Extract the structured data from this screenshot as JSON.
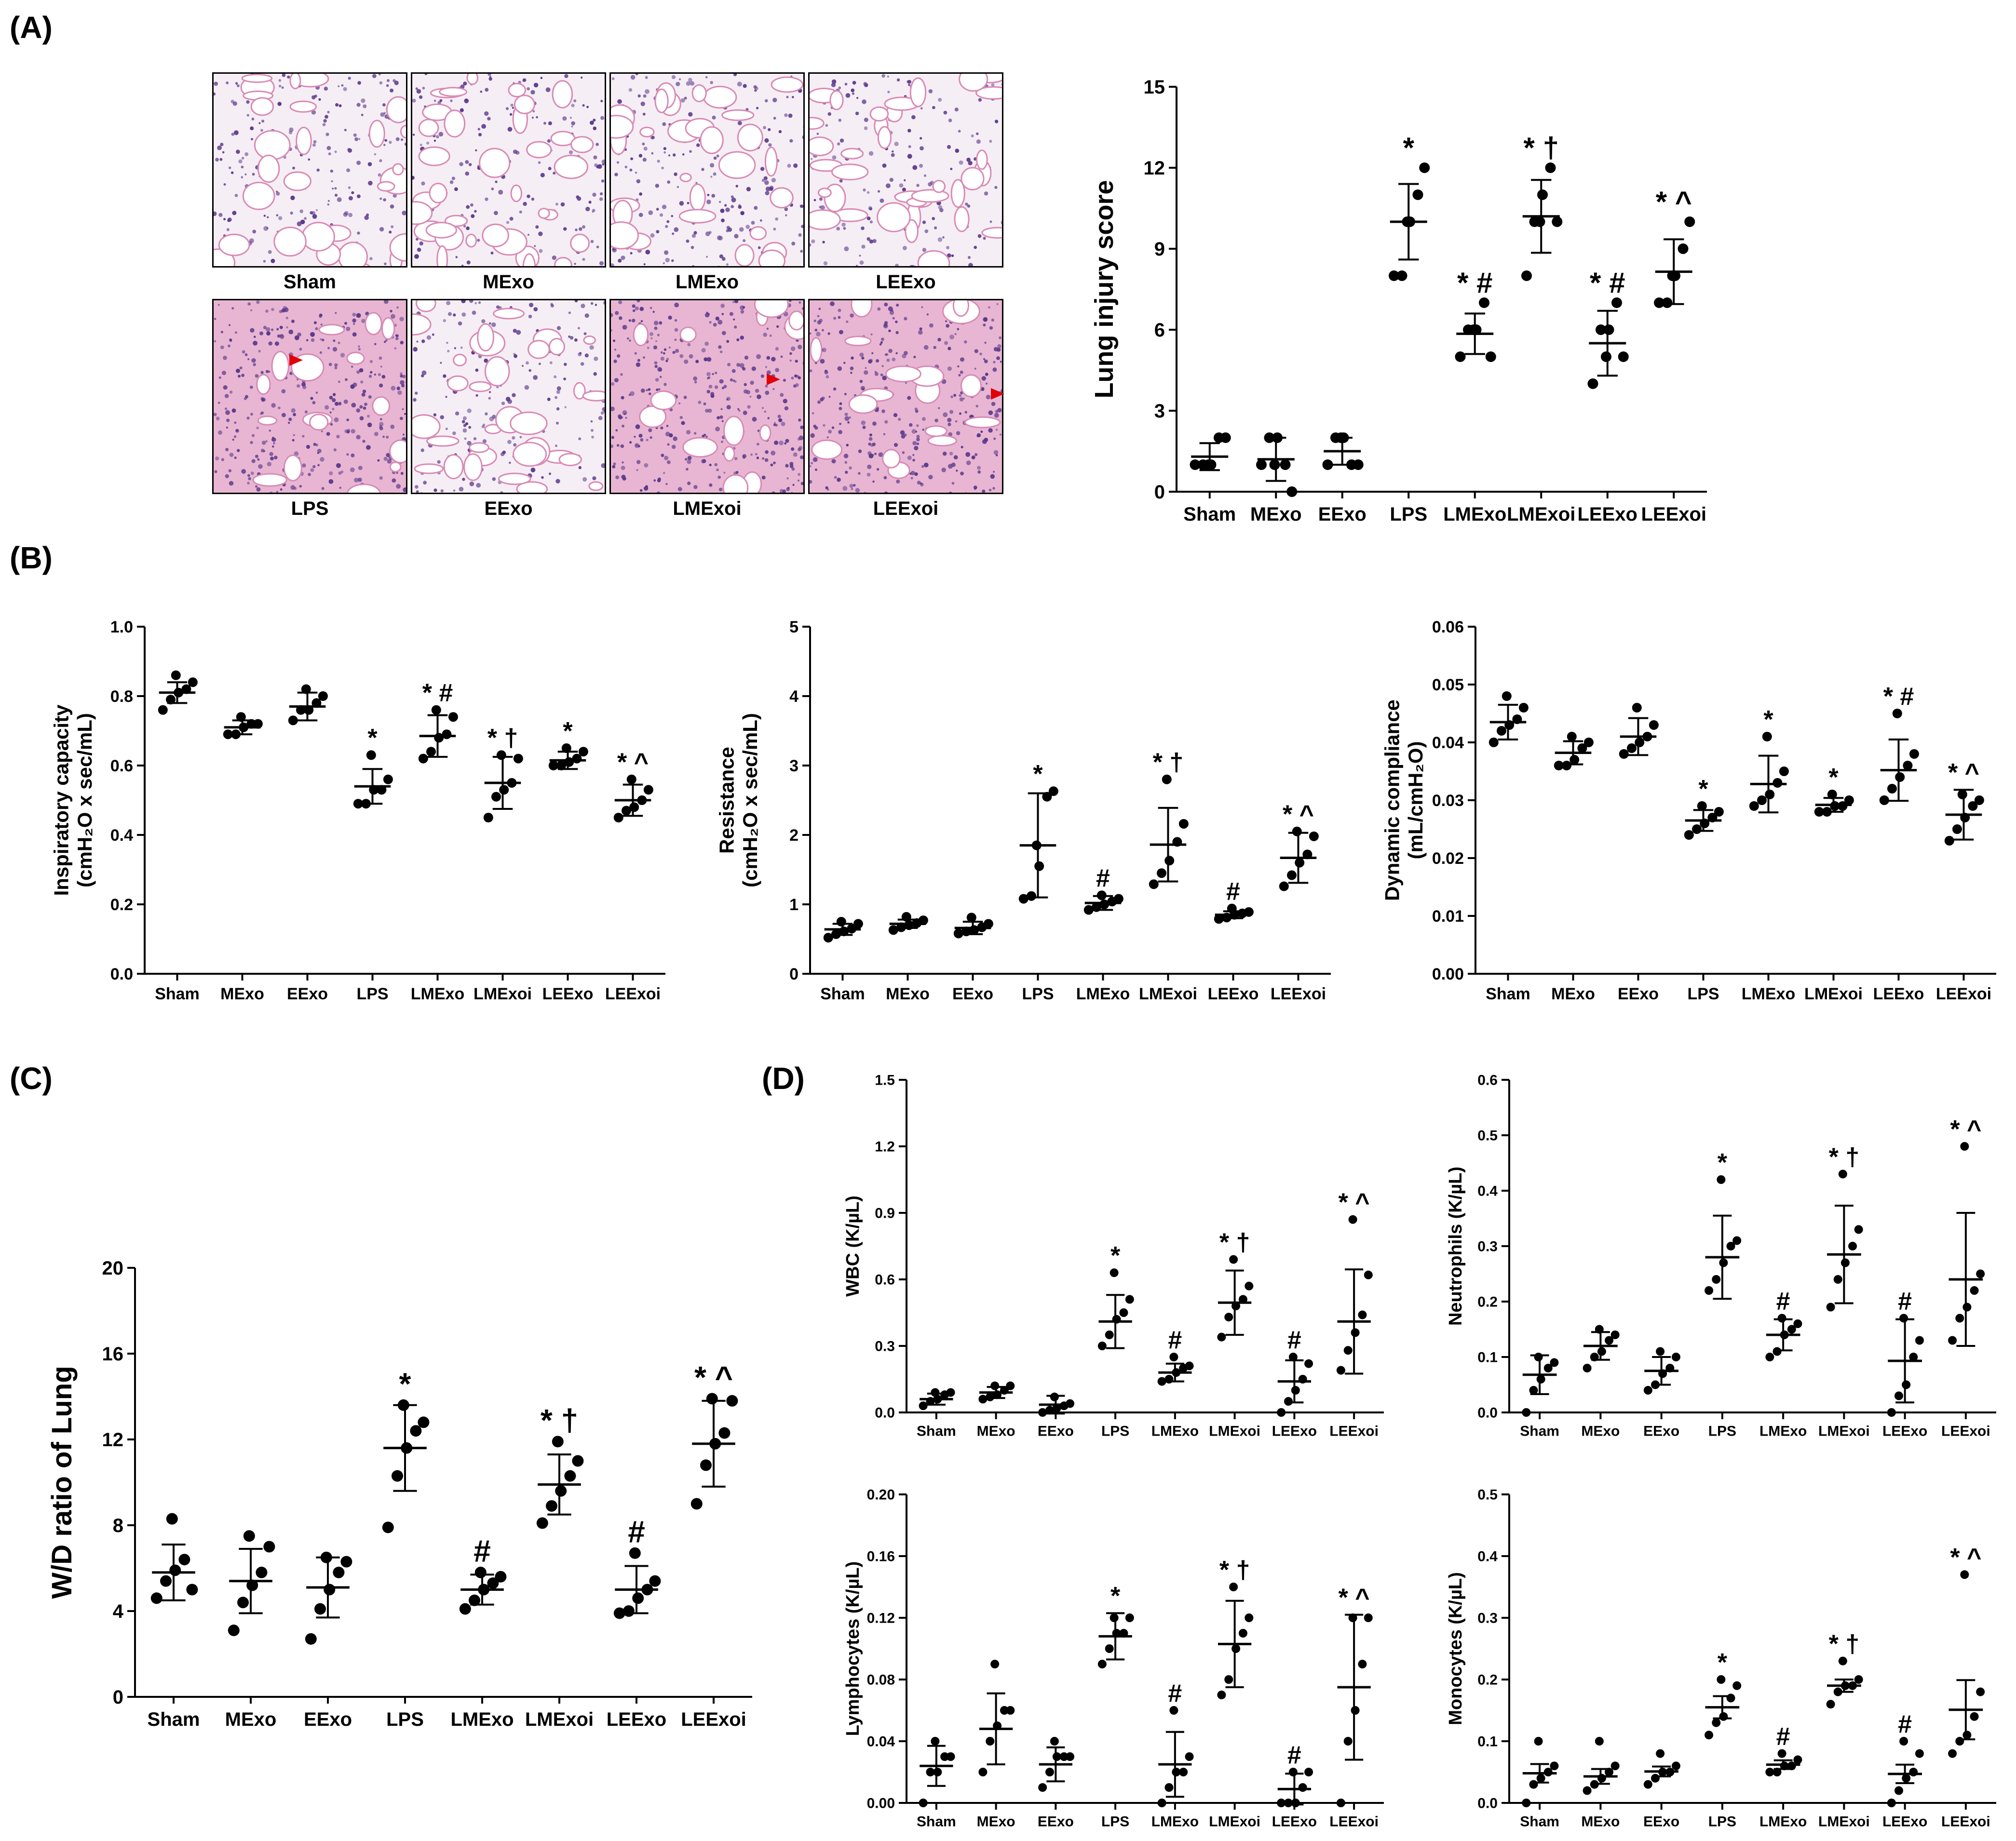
{
  "panel_labels": {
    "a": "(A)",
    "b": "(B)",
    "c": "(C)",
    "d": "(D)"
  },
  "histology": {
    "row1": [
      "Sham",
      "MExo",
      "LMExo",
      "LEExo"
    ],
    "row2": [
      "LPS",
      "EExo",
      "LMExoi",
      "LEExoi"
    ]
  },
  "colors": {
    "lung_tissue": "#ffffff",
    "stain_pink": "#d98ab4",
    "stain_purple": "#5b3a8c",
    "arrow": "#e0000a"
  },
  "chart_data": [
    {
      "id": "lung_injury",
      "type": "scatter",
      "ylabel": "Lung injury score",
      "ylim": [
        0,
        15
      ],
      "yticks": [
        "0",
        "3",
        "6",
        "9",
        "12",
        "15"
      ],
      "categories": [
        "Sham",
        "MExo",
        "EExo",
        "LPS",
        "LMExo",
        "LMExoi",
        "LEExo",
        "LEExoi"
      ],
      "points": [
        [
          1,
          1,
          1,
          2,
          2,
          1
        ],
        [
          1,
          2,
          2,
          1,
          0,
          1
        ],
        [
          1,
          2,
          2,
          1,
          1,
          2
        ],
        [
          8,
          8,
          10,
          11,
          12,
          10
        ],
        [
          5,
          6,
          6,
          7,
          5,
          6
        ],
        [
          8,
          10,
          11,
          12,
          10,
          10
        ],
        [
          4,
          6,
          6,
          7,
          5,
          5
        ],
        [
          7,
          7,
          8,
          9,
          10,
          8
        ]
      ],
      "mean": [
        1.3,
        1.2,
        1.5,
        10.0,
        5.85,
        10.2,
        5.5,
        8.15
      ],
      "sd": [
        0.5,
        0.8,
        0.5,
        1.4,
        0.75,
        1.35,
        1.2,
        1.2
      ],
      "annotations": [
        "",
        "",
        "",
        "*",
        "* #",
        "* †",
        "* #",
        "* ^"
      ]
    },
    {
      "id": "inspiratory_capacity",
      "type": "scatter",
      "ylabel": "Inspiratory capacity",
      "ylabel2": "(cmH₂O x sec/mL)",
      "ylim": [
        0,
        1.0
      ],
      "yticks": [
        "0.0",
        "0.2",
        "0.4",
        "0.6",
        "0.8",
        "1.0"
      ],
      "categories": [
        "Sham",
        "MExo",
        "EExo",
        "LPS",
        "LMExo",
        "LMExoi",
        "LEExo",
        "LEExoi"
      ],
      "points": [
        [
          0.76,
          0.79,
          0.81,
          0.82,
          0.84,
          0.86
        ],
        [
          0.69,
          0.69,
          0.71,
          0.72,
          0.72,
          0.74
        ],
        [
          0.73,
          0.76,
          0.76,
          0.78,
          0.8,
          0.82
        ],
        [
          0.49,
          0.49,
          0.53,
          0.53,
          0.56,
          0.63
        ],
        [
          0.62,
          0.64,
          0.68,
          0.69,
          0.74,
          0.76
        ],
        [
          0.45,
          0.51,
          0.53,
          0.55,
          0.62,
          0.63
        ],
        [
          0.6,
          0.6,
          0.61,
          0.62,
          0.64,
          0.65
        ],
        [
          0.45,
          0.47,
          0.48,
          0.5,
          0.53,
          0.56
        ]
      ],
      "mean": [
        0.81,
        0.71,
        0.77,
        0.54,
        0.685,
        0.55,
        0.615,
        0.5
      ],
      "sd": [
        0.03,
        0.02,
        0.04,
        0.05,
        0.06,
        0.075,
        0.025,
        0.045
      ],
      "annotations": [
        "",
        "",
        "",
        "*",
        "* #",
        "* †",
        "*",
        "* ^"
      ]
    },
    {
      "id": "resistance",
      "type": "scatter",
      "ylabel": "Resistance",
      "ylabel2": "(cmH₂O x sec/mL)",
      "ylim": [
        0,
        5
      ],
      "yticks": [
        "0",
        "1",
        "2",
        "3",
        "4",
        "5"
      ],
      "categories": [
        "Sham",
        "MExo",
        "EExo",
        "LPS",
        "LMExo",
        "LMExoi",
        "LEExo",
        "LEExoi"
      ],
      "points": [
        [
          0.52,
          0.57,
          0.61,
          0.65,
          0.72,
          0.75
        ],
        [
          0.63,
          0.67,
          0.7,
          0.73,
          0.77,
          0.82
        ],
        [
          0.58,
          0.61,
          0.63,
          0.67,
          0.72,
          0.81
        ],
        [
          1.08,
          1.12,
          1.55,
          2.55,
          2.63,
          1.85
        ],
        [
          0.92,
          0.96,
          1.0,
          1.04,
          1.08,
          1.13
        ],
        [
          1.29,
          1.45,
          1.63,
          1.9,
          2.16,
          2.8
        ],
        [
          0.79,
          0.81,
          0.85,
          0.87,
          0.89,
          0.94
        ],
        [
          1.26,
          1.42,
          1.6,
          1.72,
          1.98,
          2.05
        ]
      ],
      "mean": [
        0.64,
        0.72,
        0.66,
        1.85,
        1.02,
        1.86,
        0.85,
        1.67
      ],
      "sd": [
        0.08,
        0.06,
        0.09,
        0.75,
        0.1,
        0.53,
        0.05,
        0.36
      ],
      "annotations": [
        "",
        "",
        "",
        "*",
        "#",
        "* †",
        "#",
        "* ^"
      ]
    },
    {
      "id": "dynamic_compliance",
      "type": "scatter",
      "ylabel": "Dynamic compliance",
      "ylabel2": "(mL/cmH₂O)",
      "ylim": [
        0,
        0.06
      ],
      "yticks": [
        "0.00",
        "0.01",
        "0.02",
        "0.03",
        "0.04",
        "0.05",
        "0.06"
      ],
      "categories": [
        "Sham",
        "MExo",
        "EExo",
        "LPS",
        "LMExo",
        "LMExoi",
        "LEExo",
        "LEExoi"
      ],
      "points": [
        [
          0.04,
          0.042,
          0.043,
          0.044,
          0.046,
          0.048
        ],
        [
          0.036,
          0.036,
          0.037,
          0.039,
          0.04,
          0.041
        ],
        [
          0.038,
          0.039,
          0.04,
          0.041,
          0.043,
          0.046
        ],
        [
          0.024,
          0.025,
          0.026,
          0.027,
          0.028,
          0.029
        ],
        [
          0.029,
          0.03,
          0.031,
          0.033,
          0.035,
          0.041
        ],
        [
          0.028,
          0.028,
          0.029,
          0.029,
          0.03,
          0.031
        ],
        [
          0.03,
          0.032,
          0.034,
          0.036,
          0.038,
          0.045
        ],
        [
          0.023,
          0.025,
          0.027,
          0.029,
          0.03,
          0.031
        ]
      ],
      "mean": [
        0.0435,
        0.0382,
        0.041,
        0.0265,
        0.0328,
        0.0292,
        0.0352,
        0.0275
      ],
      "sd": [
        0.003,
        0.002,
        0.0032,
        0.0018,
        0.0049,
        0.0012,
        0.0053,
        0.0043
      ],
      "annotations": [
        "",
        "",
        "",
        "*",
        "*",
        "*",
        "* #",
        "* ^"
      ]
    },
    {
      "id": "wd_ratio",
      "type": "scatter",
      "ylabel": "W/D ratio of Lung",
      "ylim": [
        0,
        20
      ],
      "yticks": [
        "0",
        "4",
        "8",
        "12",
        "16",
        "20"
      ],
      "categories": [
        "Sham",
        "MExo",
        "EExo",
        "LPS",
        "LMExo",
        "LMExoi",
        "LEExo",
        "LEExoi"
      ],
      "points": [
        [
          4.6,
          5.4,
          5.9,
          6.4,
          5.0,
          8.3
        ],
        [
          3.1,
          4.4,
          5.2,
          5.8,
          7.0,
          7.5
        ],
        [
          2.7,
          4.1,
          5.0,
          5.8,
          6.3,
          6.5
        ],
        [
          7.9,
          10.3,
          11.6,
          12.4,
          12.8,
          13.6
        ],
        [
          4.1,
          4.5,
          5.0,
          5.3,
          5.6,
          5.8
        ],
        [
          8.1,
          8.9,
          9.6,
          10.3,
          11.0,
          11.9
        ],
        [
          3.9,
          4.0,
          4.6,
          5.0,
          5.4,
          6.7
        ],
        [
          9.0,
          10.8,
          11.8,
          12.3,
          13.8,
          13.9
        ]
      ],
      "mean": [
        5.8,
        5.4,
        5.1,
        11.6,
        5.0,
        9.9,
        5.0,
        11.8
      ],
      "sd": [
        1.3,
        1.5,
        1.4,
        2.0,
        0.7,
        1.4,
        1.1,
        2.0
      ],
      "annotations": [
        "",
        "",
        "",
        "*",
        "#",
        "* †",
        "#",
        "* ^"
      ]
    },
    {
      "id": "wbc",
      "type": "scatter",
      "ylabel": "WBC (K/µL)",
      "ylim": [
        0,
        1.5
      ],
      "yticks": [
        "0.0",
        "0.3",
        "0.6",
        "0.9",
        "1.2",
        "1.5"
      ],
      "categories": [
        "Sham",
        "MExo",
        "EExo",
        "LPS",
        "LMExo",
        "LMExoi",
        "LEExo",
        "LEExoi"
      ],
      "points": [
        [
          0.03,
          0.05,
          0.06,
          0.08,
          0.09,
          0.09
        ],
        [
          0.06,
          0.07,
          0.08,
          0.1,
          0.12,
          0.12
        ],
        [
          0.0,
          0.01,
          0.02,
          0.03,
          0.04,
          0.07
        ],
        [
          0.3,
          0.35,
          0.42,
          0.45,
          0.51,
          0.63
        ],
        [
          0.14,
          0.15,
          0.18,
          0.2,
          0.21,
          0.25
        ],
        [
          0.34,
          0.43,
          0.48,
          0.51,
          0.57,
          0.69
        ],
        [
          0.0,
          0.05,
          0.1,
          0.15,
          0.22,
          0.25
        ],
        [
          0.19,
          0.28,
          0.36,
          0.44,
          0.62,
          0.87
        ]
      ],
      "mean": [
        0.06,
        0.09,
        0.035,
        0.41,
        0.18,
        0.495,
        0.14,
        0.41
      ],
      "sd": [
        0.025,
        0.025,
        0.04,
        0.12,
        0.04,
        0.145,
        0.095,
        0.235
      ],
      "annotations": [
        "",
        "",
        "",
        "*",
        "#",
        "* †",
        "#",
        "* ^"
      ]
    },
    {
      "id": "neutrophils",
      "type": "scatter",
      "ylabel": "Neutrophils (K/µL)",
      "ylim": [
        0,
        0.6
      ],
      "yticks": [
        "0.0",
        "0.1",
        "0.2",
        "0.3",
        "0.4",
        "0.5",
        "0.6"
      ],
      "categories": [
        "Sham",
        "MExo",
        "EExo",
        "LPS",
        "LMExo",
        "LMExoi",
        "LEExo",
        "LEExoi"
      ],
      "points": [
        [
          0.0,
          0.04,
          0.06,
          0.08,
          0.09,
          0.1
        ],
        [
          0.08,
          0.1,
          0.11,
          0.13,
          0.14,
          0.15
        ],
        [
          0.04,
          0.05,
          0.07,
          0.08,
          0.1,
          0.11
        ],
        [
          0.22,
          0.24,
          0.27,
          0.3,
          0.31,
          0.42
        ],
        [
          0.1,
          0.11,
          0.14,
          0.15,
          0.16,
          0.17
        ],
        [
          0.19,
          0.24,
          0.27,
          0.3,
          0.33,
          0.43
        ],
        [
          0.0,
          0.03,
          0.05,
          0.1,
          0.13,
          0.17
        ],
        [
          0.13,
          0.17,
          0.19,
          0.22,
          0.25,
          0.48
        ]
      ],
      "mean": [
        0.068,
        0.12,
        0.075,
        0.28,
        0.14,
        0.285,
        0.093,
        0.24
      ],
      "sd": [
        0.035,
        0.025,
        0.025,
        0.075,
        0.028,
        0.088,
        0.075,
        0.12
      ],
      "annotations": [
        "",
        "",
        "",
        "*",
        "#",
        "* †",
        "#",
        "* ^"
      ]
    },
    {
      "id": "lymphocytes",
      "type": "scatter",
      "ylabel": "Lymphocytes (K/µL)",
      "ylim": [
        0,
        0.2
      ],
      "yticks": [
        "0.00",
        "0.04",
        "0.08",
        "0.12",
        "0.16",
        "0.20"
      ],
      "categories": [
        "Sham",
        "MExo",
        "EExo",
        "LPS",
        "LMExo",
        "LMExoi",
        "LEExo",
        "LEExoi"
      ],
      "points": [
        [
          0.0,
          0.02,
          0.02,
          0.03,
          0.03,
          0.04
        ],
        [
          0.02,
          0.04,
          0.05,
          0.06,
          0.06,
          0.09
        ],
        [
          0.01,
          0.02,
          0.03,
          0.03,
          0.03,
          0.04
        ],
        [
          0.09,
          0.1,
          0.11,
          0.11,
          0.12,
          0.12
        ],
        [
          0.0,
          0.01,
          0.02,
          0.02,
          0.03,
          0.06
        ],
        [
          0.07,
          0.08,
          0.1,
          0.11,
          0.12,
          0.14
        ],
        [
          0.0,
          0.0,
          0.0,
          0.01,
          0.02,
          0.02
        ],
        [
          0.0,
          0.04,
          0.06,
          0.09,
          0.12,
          0.12
        ]
      ],
      "mean": [
        0.024,
        0.048,
        0.025,
        0.108,
        0.025,
        0.103,
        0.009,
        0.075
      ],
      "sd": [
        0.013,
        0.023,
        0.011,
        0.015,
        0.021,
        0.028,
        0.01,
        0.047
      ],
      "annotations": [
        "",
        "",
        "",
        "*",
        "#",
        "* †",
        "#",
        "* ^"
      ]
    },
    {
      "id": "monocytes",
      "type": "scatter",
      "ylabel": "Monocytes (K/µL)",
      "ylim": [
        0,
        0.5
      ],
      "yticks": [
        "0.0",
        "0.1",
        "0.2",
        "0.3",
        "0.4",
        "0.5"
      ],
      "categories": [
        "Sham",
        "MExo",
        "EExo",
        "LPS",
        "LMExo",
        "LMExoi",
        "LEExo",
        "LEExoi"
      ],
      "points": [
        [
          0.0,
          0.03,
          0.04,
          0.05,
          0.06,
          0.1
        ],
        [
          0.02,
          0.03,
          0.04,
          0.05,
          0.06,
          0.1
        ],
        [
          0.03,
          0.04,
          0.05,
          0.05,
          0.06,
          0.08
        ],
        [
          0.11,
          0.13,
          0.14,
          0.17,
          0.19,
          0.2
        ],
        [
          0.05,
          0.05,
          0.06,
          0.06,
          0.07,
          0.08
        ],
        [
          0.16,
          0.18,
          0.19,
          0.19,
          0.2,
          0.23
        ],
        [
          0.0,
          0.02,
          0.04,
          0.05,
          0.08,
          0.1
        ],
        [
          0.08,
          0.1,
          0.11,
          0.14,
          0.18,
          0.37
        ]
      ],
      "mean": [
        0.048,
        0.043,
        0.051,
        0.155,
        0.062,
        0.19,
        0.047,
        0.151
      ],
      "sd": [
        0.015,
        0.012,
        0.008,
        0.018,
        0.007,
        0.01,
        0.015,
        0.048
      ],
      "annotations": [
        "",
        "",
        "",
        "*",
        "#",
        "* †",
        "#",
        "* ^"
      ]
    }
  ]
}
